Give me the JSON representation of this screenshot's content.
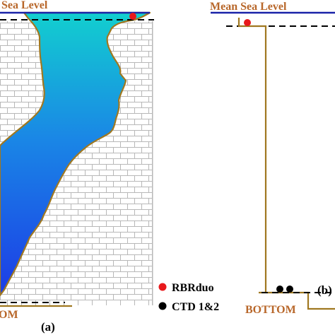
{
  "panel_a": {
    "sea_level_label": "Sea Level",
    "bottom_label": "OM",
    "panel_label": "(a)"
  },
  "panel_b": {
    "sea_level_label": "Mean Sea Level",
    "bottom_label": "BOTTOM",
    "panel_label": "(b)"
  },
  "legend": {
    "items": [
      {
        "label": "RBRduo",
        "color": "#e8191c",
        "icon": "red-dot-icon"
      },
      {
        "label": "CTD 1&2",
        "color": "#000000",
        "icon": "black-dot-icon"
      }
    ]
  },
  "colors": {
    "sea_level_line": "#1a23a8",
    "label_text": "#b8672a",
    "wall_outline": "#a07820",
    "water_top": "#10c8c8",
    "water_bottom": "#1a3fe6",
    "brick_line": "#b5b5b5"
  }
}
